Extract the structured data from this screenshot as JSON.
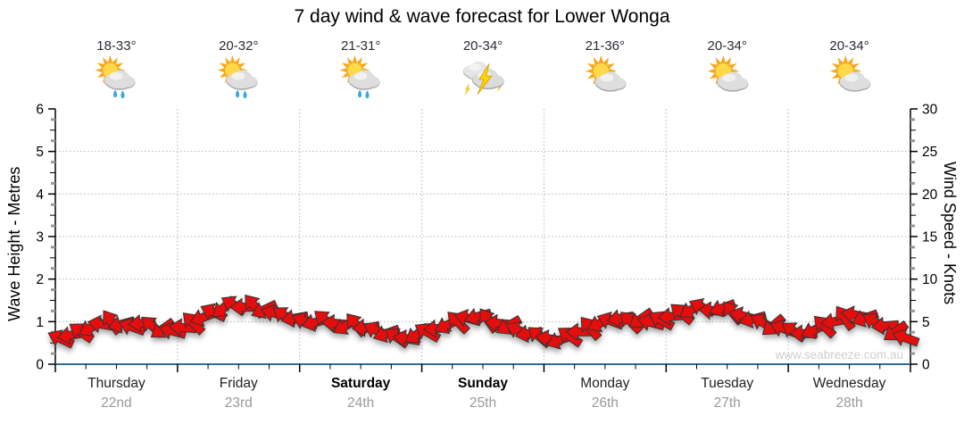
{
  "title": "7 day wind & wave forecast for Lower Wonga",
  "watermark": "www.seabreeze.com.au",
  "axes": {
    "left_label": "Wave Height - Metres",
    "right_label": "Wind Speed - Knots",
    "left_ticks": [
      0,
      1,
      2,
      3,
      4,
      5,
      6
    ],
    "right_ticks": [
      0,
      5,
      10,
      15,
      20,
      25,
      30
    ]
  },
  "days": [
    {
      "name": "Thursday",
      "date": "22nd",
      "temp": "18-33°",
      "icon": "sun-cloud-rain",
      "weekend": false
    },
    {
      "name": "Friday",
      "date": "23rd",
      "temp": "20-32°",
      "icon": "sun-cloud-rain",
      "weekend": false
    },
    {
      "name": "Saturday",
      "date": "24th",
      "temp": "21-31°",
      "icon": "sun-cloud-rain",
      "weekend": true
    },
    {
      "name": "Sunday",
      "date": "25th",
      "temp": "20-34°",
      "icon": "storm",
      "weekend": true
    },
    {
      "name": "Monday",
      "date": "26th",
      "temp": "21-36°",
      "icon": "sun-cloud",
      "weekend": false
    },
    {
      "name": "Tuesday",
      "date": "27th",
      "temp": "20-34°",
      "icon": "sun-cloud",
      "weekend": false
    },
    {
      "name": "Wednesday",
      "date": "28th",
      "temp": "20-34°",
      "icon": "sun-cloud",
      "weekend": false
    }
  ],
  "colors": {
    "arrow_fill": "#E60D0D",
    "arrow_outline": "#333333",
    "x_axis_line": "#2E6D9E",
    "axis_line": "#000000",
    "grid_dotted": "#B5B5B5",
    "minor_tick_gray": "#999999",
    "date_text": "#9A9A9A",
    "watermark_text": "#CFCFCF"
  },
  "chart_data": {
    "type": "scatter",
    "subtype": "wind-direction-arrows",
    "title": "7 day wind & wave forecast for Lower Wonga",
    "x_axis": {
      "categories": [
        "Thursday 22nd",
        "Friday 23rd",
        "Saturday 24th",
        "Sunday 25th",
        "Monday 26th",
        "Tuesday 27th",
        "Wednesday 28th"
      ],
      "minor_ticks_per_day": 4
    },
    "y_left": {
      "label": "Wave Height - Metres",
      "range": [
        0,
        6
      ],
      "ticks": [
        0,
        1,
        2,
        3,
        4,
        5,
        6
      ]
    },
    "y_right": {
      "label": "Wind Speed - Knots",
      "range": [
        0,
        30
      ],
      "ticks": [
        0,
        5,
        10,
        15,
        20,
        25,
        30
      ]
    },
    "grid": {
      "horizontal_lines_metres": [
        1,
        2,
        3,
        4,
        5
      ],
      "vertical_lines": "day-boundaries",
      "style": "dotted"
    },
    "wave_height_series_m": "flat at 0 for all 7 days (dark blue line along baseline)",
    "wind": {
      "units_speed": "knots",
      "units_direction": "degrees (arrow rotation, 0 = pointing right)",
      "sample_interval_hours": 2,
      "samples": [
        [
          3.0,
          205
        ],
        [
          3.4,
          170
        ],
        [
          3.8,
          215
        ],
        [
          4.3,
          150
        ],
        [
          4.7,
          190
        ],
        [
          5.0,
          235
        ],
        [
          4.7,
          165
        ],
        [
          4.4,
          200
        ],
        [
          4.8,
          175
        ],
        [
          4.5,
          220
        ],
        [
          4.1,
          145
        ],
        [
          3.9,
          195
        ],
        [
          4.3,
          185
        ],
        [
          4.9,
          225
        ],
        [
          5.5,
          160
        ],
        [
          6.1,
          205
        ],
        [
          6.6,
          140
        ],
        [
          7.0,
          210
        ],
        [
          6.7,
          180
        ],
        [
          6.9,
          230
        ],
        [
          6.4,
          155
        ],
        [
          6.0,
          195
        ],
        [
          5.7,
          215
        ],
        [
          5.4,
          170
        ],
        [
          5.1,
          200
        ],
        [
          4.9,
          165
        ],
        [
          5.2,
          220
        ],
        [
          4.8,
          185
        ],
        [
          4.5,
          150
        ],
        [
          4.7,
          230
        ],
        [
          4.3,
          175
        ],
        [
          4.0,
          205
        ],
        [
          3.6,
          160
        ],
        [
          3.2,
          215
        ],
        [
          3.0,
          190
        ],
        [
          3.5,
          145
        ],
        [
          3.8,
          210
        ],
        [
          4.2,
          175
        ],
        [
          4.6,
          155
        ],
        [
          5.0,
          225
        ],
        [
          5.4,
          195
        ],
        [
          5.6,
          165
        ],
        [
          5.2,
          235
        ],
        [
          4.8,
          185
        ],
        [
          4.5,
          150
        ],
        [
          4.0,
          205
        ],
        [
          3.6,
          170
        ],
        [
          3.3,
          220
        ],
        [
          3.0,
          190
        ],
        [
          2.8,
          160
        ],
        [
          3.3,
          215
        ],
        [
          3.8,
          180
        ],
        [
          4.3,
          230
        ],
        [
          4.8,
          155
        ],
        [
          5.1,
          200
        ],
        [
          5.4,
          170
        ],
        [
          5.0,
          225
        ],
        [
          5.3,
          145
        ],
        [
          4.9,
          195
        ],
        [
          5.2,
          210
        ],
        [
          5.6,
          175
        ],
        [
          6.0,
          220
        ],
        [
          6.4,
          150
        ],
        [
          6.7,
          205
        ],
        [
          6.3,
          185
        ],
        [
          6.6,
          160
        ],
        [
          6.1,
          230
        ],
        [
          5.7,
          195
        ],
        [
          5.3,
          165
        ],
        [
          4.9,
          210
        ],
        [
          4.5,
          140
        ],
        [
          4.2,
          200
        ],
        [
          3.9,
          215
        ],
        [
          3.6,
          180
        ],
        [
          4.0,
          155
        ],
        [
          4.5,
          225
        ],
        [
          5.0,
          170
        ],
        [
          5.5,
          235
        ],
        [
          5.8,
          190
        ],
        [
          5.4,
          160
        ],
        [
          5.0,
          210
        ],
        [
          4.5,
          175
        ],
        [
          3.8,
          145
        ],
        [
          3.1,
          200
        ]
      ]
    }
  }
}
